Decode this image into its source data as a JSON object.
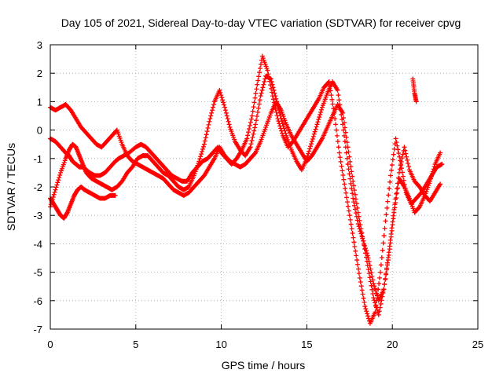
{
  "chart_data": {
    "type": "scatter",
    "title": "Day 105 of 2021, Sidereal Day-to-day VTEC variation (SDTVAR) for receiver cpvg",
    "xlabel": "GPS time / hours",
    "ylabel": "SDTVAR / TECUs",
    "xlim": [
      0,
      25
    ],
    "ylim": [
      -7,
      3
    ],
    "xticks": [
      0,
      5,
      10,
      15,
      20,
      25
    ],
    "yticks": [
      -7,
      -6,
      -5,
      -4,
      -3,
      -2,
      -1,
      0,
      1,
      2,
      3
    ],
    "grid": true,
    "marker": "plus",
    "series_color": "#ff0000",
    "series": [
      {
        "x": [
          0.0,
          0.3,
          0.6,
          0.9,
          1.1,
          1.3,
          1.5,
          1.7,
          1.9,
          2.1,
          2.3,
          2.6,
          2.9,
          3.2,
          3.5,
          3.8,
          4.0,
          4.3,
          4.6,
          5.0,
          5.3,
          5.6,
          5.9,
          6.2,
          6.5,
          6.8,
          7.1,
          7.4,
          7.7,
          8.0,
          8.3,
          8.6,
          8.9,
          9.2,
          9.5,
          9.8,
          10.0,
          10.3,
          10.6,
          10.9,
          11.2,
          11.5,
          11.8,
          12.1,
          12.4,
          12.7,
          13.0,
          13.3,
          13.6,
          13.9,
          14.2,
          14.5,
          14.8,
          15.1,
          15.4,
          15.7,
          16.0,
          16.3,
          16.6,
          16.9,
          17.2,
          17.5,
          17.8,
          18.1,
          18.4,
          18.7,
          19.0,
          19.3,
          19.6,
          19.9,
          20.2,
          20.5,
          20.8,
          21.1,
          21.4,
          21.7,
          22.0,
          22.3,
          22.6,
          22.9
        ],
        "y": [
          -0.3,
          -0.4,
          -0.6,
          -0.8,
          -0.9,
          -1.1,
          -1.2,
          -1.3,
          -1.3,
          -1.4,
          -1.5,
          -1.6,
          -1.6,
          -1.5,
          -1.3,
          -1.1,
          -1.0,
          -0.9,
          -0.8,
          -0.6,
          -0.5,
          -0.6,
          -0.8,
          -1.0,
          -1.2,
          -1.4,
          -1.6,
          -1.7,
          -1.8,
          -1.8,
          -1.5,
          -1.3,
          -1.1,
          -1.0,
          -0.8,
          -0.6,
          -0.8,
          -1.0,
          -1.2,
          -1.0,
          -0.7,
          -0.3,
          0.5,
          1.6,
          2.6,
          2.1,
          1.2,
          0.4,
          -0.2,
          -0.6,
          -0.4,
          -0.1,
          0.2,
          0.5,
          0.8,
          1.1,
          1.5,
          1.7,
          0.6,
          -0.8,
          -1.9,
          -3.0,
          -4.1,
          -5.2,
          -6.2,
          -6.8,
          -6.4,
          -5.0,
          -3.2,
          -1.6,
          -0.3,
          -1.2,
          -2.2,
          -2.6,
          -2.4,
          -2.2,
          -1.9,
          -1.6,
          -1.3,
          -1.2
        ]
      },
      {
        "x": [
          0.0,
          0.3,
          0.6,
          0.9,
          1.1,
          1.3,
          1.5,
          1.7,
          1.9,
          2.1,
          2.4,
          2.7,
          3.0,
          3.3,
          3.6,
          3.9,
          4.2,
          4.5,
          4.8,
          5.1,
          5.4,
          5.7,
          6.0,
          6.3,
          6.6,
          6.9,
          7.2,
          7.5,
          7.8,
          8.1,
          8.4,
          8.7,
          9.0,
          9.3,
          9.6,
          9.9,
          10.2,
          10.5,
          10.8,
          11.1,
          11.4,
          11.7,
          12.0,
          12.3,
          12.6,
          12.9,
          13.2,
          13.5,
          13.8,
          14.1,
          14.4,
          14.7,
          15.0,
          15.3,
          15.6,
          15.9,
          16.2,
          16.5,
          16.8,
          17.1,
          17.4,
          17.7,
          18.0,
          18.3,
          18.6,
          18.9,
          19.2,
          19.5,
          19.8,
          20.1,
          20.4,
          20.7,
          21.0,
          21.3,
          21.6,
          21.9,
          22.2,
          22.5,
          22.8
        ],
        "y": [
          -2.7,
          -2.1,
          -1.5,
          -1.0,
          -0.7,
          -0.5,
          -0.6,
          -0.9,
          -1.2,
          -1.5,
          -1.7,
          -1.8,
          -1.9,
          -2.0,
          -2.1,
          -2.0,
          -1.8,
          -1.5,
          -1.3,
          -1.0,
          -0.9,
          -0.9,
          -1.1,
          -1.3,
          -1.5,
          -1.6,
          -1.8,
          -2.0,
          -2.1,
          -2.0,
          -1.6,
          -1.1,
          -0.5,
          0.3,
          1.0,
          1.4,
          0.8,
          0.1,
          -0.4,
          -0.7,
          -0.9,
          -0.6,
          0.2,
          1.2,
          1.9,
          1.8,
          1.1,
          0.4,
          -0.2,
          -0.7,
          -1.1,
          -1.4,
          -1.0,
          -0.4,
          0.2,
          0.8,
          1.3,
          1.7,
          1.4,
          0.2,
          -1.2,
          -2.4,
          -3.3,
          -3.9,
          -4.5,
          -5.4,
          -6.0,
          -5.6,
          -4.4,
          -2.9,
          -1.7,
          -2.0,
          -2.4,
          -2.9,
          -2.7,
          -2.3,
          -1.8,
          -1.2,
          -0.8
        ]
      },
      {
        "x": [
          0.0,
          0.3,
          0.6,
          0.9,
          1.2,
          1.5,
          1.8,
          2.1,
          2.4,
          2.7,
          3.0,
          3.3,
          3.6,
          3.9,
          4.2,
          4.5,
          4.8,
          5.1,
          5.4,
          5.7,
          6.0,
          6.3,
          6.6,
          6.9,
          7.2,
          7.5,
          7.8,
          8.1,
          8.4,
          8.7,
          9.0,
          9.3,
          9.6,
          9.9,
          10.2,
          10.5,
          10.8,
          11.1,
          11.4,
          11.7,
          12.0,
          12.3,
          12.6,
          12.9,
          13.2,
          13.5,
          13.8,
          14.1,
          14.4,
          14.7,
          15.0,
          15.3,
          15.6,
          15.9,
          16.2,
          16.5,
          16.8,
          17.1,
          17.4,
          17.7,
          18.0,
          18.3,
          18.6,
          18.9,
          19.2,
          19.5,
          19.8,
          20.1,
          20.4,
          20.7,
          21.0,
          21.3,
          21.6,
          21.9,
          22.2,
          22.5,
          22.8
        ],
        "y": [
          0.8,
          0.7,
          0.8,
          0.9,
          0.7,
          0.4,
          0.1,
          -0.1,
          -0.3,
          -0.5,
          -0.6,
          -0.4,
          -0.2,
          0.0,
          -0.5,
          -0.9,
          -1.1,
          -1.2,
          -1.3,
          -1.4,
          -1.5,
          -1.6,
          -1.7,
          -1.9,
          -2.1,
          -2.2,
          -2.3,
          -2.2,
          -2.0,
          -1.8,
          -1.6,
          -1.3,
          -1.0,
          -0.6,
          -0.9,
          -1.1,
          -1.2,
          -1.3,
          -1.2,
          -1.0,
          -0.8,
          -0.4,
          0.1,
          0.6,
          1.0,
          0.7,
          0.2,
          -0.2,
          -0.5,
          -0.8,
          -1.1,
          -0.9,
          -0.6,
          -0.3,
          0.1,
          0.5,
          0.9,
          0.6,
          -0.6,
          -1.8,
          -2.9,
          -3.9,
          -4.9,
          -5.9,
          -6.5,
          -5.6,
          -4.3,
          -2.8,
          -1.5,
          -0.6,
          -1.4,
          -1.8,
          -2.0,
          -2.3,
          -2.5,
          -2.2,
          -1.9
        ]
      },
      {
        "x": [
          0.0,
          0.2,
          0.4,
          0.6,
          0.8,
          1.0,
          1.2,
          1.4,
          1.6,
          1.8,
          2.0,
          2.3,
          2.6,
          2.9,
          3.2,
          3.5,
          3.8
        ],
        "y": [
          -2.4,
          -2.6,
          -2.8,
          -3.0,
          -3.1,
          -2.9,
          -2.6,
          -2.3,
          -2.1,
          -2.0,
          -2.1,
          -2.2,
          -2.3,
          -2.4,
          -2.4,
          -2.3,
          -2.3
        ]
      },
      {
        "x": [
          21.2,
          21.3,
          21.4
        ],
        "y": [
          1.8,
          1.3,
          1.0
        ]
      }
    ]
  }
}
